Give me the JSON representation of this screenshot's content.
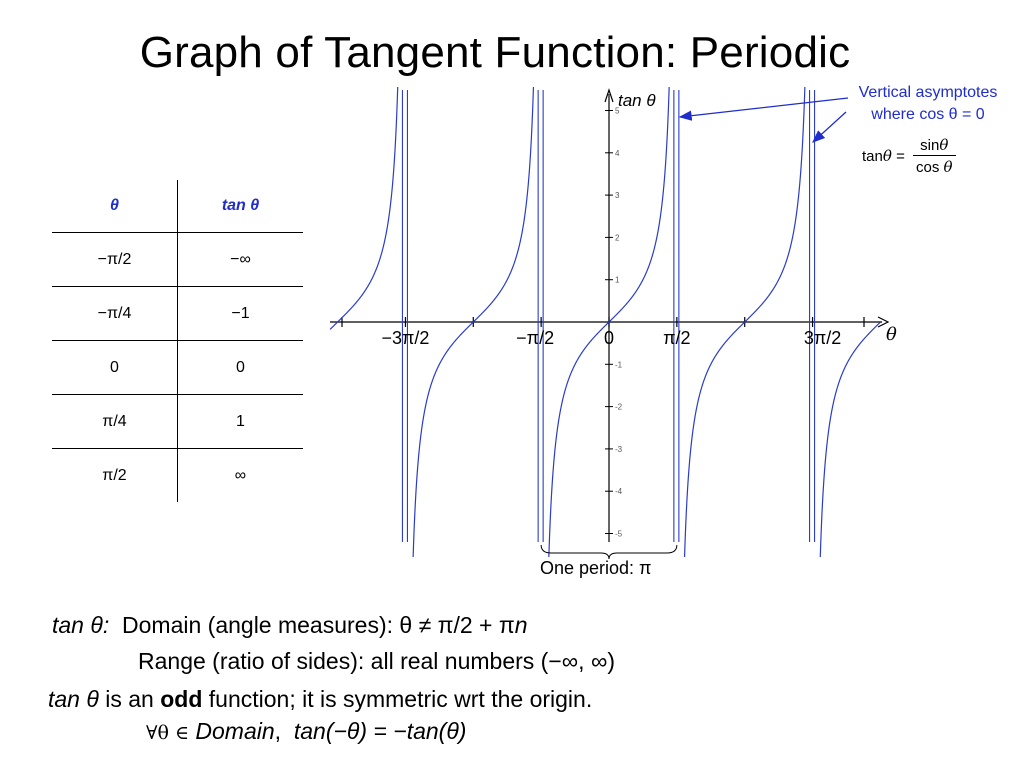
{
  "title": "Graph of Tangent Function: Periodic",
  "table": {
    "headers": [
      "θ",
      "tan θ"
    ],
    "rows": [
      [
        "−π/2",
        "−∞"
      ],
      [
        "−π/4",
        "−1"
      ],
      [
        "0",
        "0"
      ],
      [
        "π/4",
        "1"
      ],
      [
        "π/2",
        "∞"
      ]
    ]
  },
  "annotations": {
    "asymptotes_line1": "Vertical asymptotes",
    "asymptotes_line2": "where cos θ = 0",
    "formula_lhs": "tan",
    "formula_theta": "θ",
    "formula_eq": "=",
    "formula_num": "sin",
    "formula_den": "cos",
    "period": "One period: π"
  },
  "notes": {
    "tan_label": "tan θ:",
    "domain": "Domain (angle measures): θ ≠ π/2 + π",
    "domain_n": "n",
    "range": "Range (ratio of sides): all real numbers (−∞, ∞)",
    "odd_prefix": "tan θ",
    "odd_mid": " is an ",
    "odd_word": "odd",
    "odd_suffix": " function; it is symmetric wrt the origin.",
    "forall": "∀θ ∈",
    "forall_domain": "Domain",
    "forall_comma": ",",
    "identity": "tan(−θ) = −tan(θ)"
  },
  "colors": {
    "curve": "#2a3cc8",
    "accent": "#1f2dcc",
    "axis": "#000000",
    "tick_text": "#555555"
  },
  "chart_data": {
    "type": "line",
    "function": "tan θ",
    "xlabel": "θ",
    "ylabel": "tan θ",
    "xlim": [
      -5.0,
      5.2
    ],
    "ylim": [
      -5,
      5
    ],
    "x_tick_labels": [
      {
        "value": -4.712,
        "label": "−3π/2"
      },
      {
        "value": -1.571,
        "label": "−π/2"
      },
      {
        "value": 0,
        "label": "0"
      },
      {
        "value": 1.571,
        "label": "π/2"
      },
      {
        "value": 4.712,
        "label": "3π/2"
      }
    ],
    "x_ticks": [
      -4.712,
      -3.1416,
      -1.571,
      0,
      1.571,
      3.1416,
      4.712
    ],
    "y_ticks": [
      -5,
      -4,
      -3,
      -2,
      -1,
      1,
      2,
      3,
      4,
      5
    ],
    "asymptotes": [
      -4.712,
      -1.571,
      1.571,
      4.712
    ],
    "period": 3.1416,
    "grid": false
  }
}
